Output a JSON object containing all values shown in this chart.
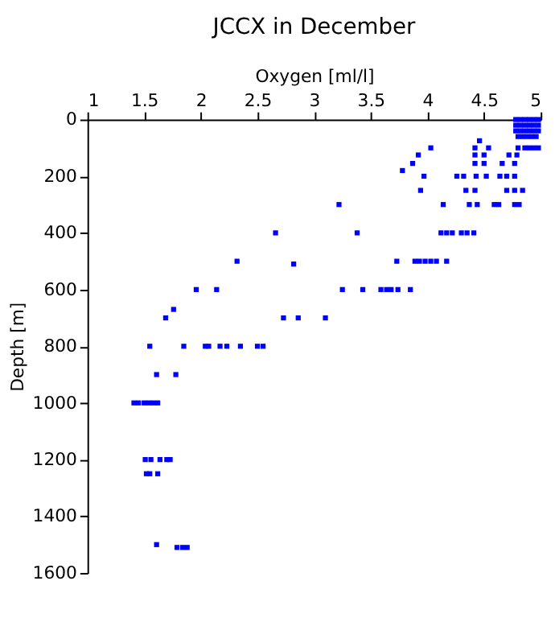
{
  "chart_data": {
    "type": "scatter",
    "title": "JCCX in December",
    "xlabel": "Oxygen [ml/l]",
    "ylabel": "Depth [m]",
    "xlim": [
      1,
      5
    ],
    "xticks": [
      1,
      1.5,
      2,
      2.5,
      3,
      3.5,
      4,
      4.5,
      5
    ],
    "ylim": [
      1600,
      0
    ],
    "yticks": [
      0,
      200,
      400,
      600,
      800,
      1000,
      1200,
      1400,
      1600
    ],
    "marker": "square",
    "series": [
      {
        "color": "#0000ff",
        "x": [
          4.78,
          4.82,
          4.86,
          4.9,
          4.94,
          4.98,
          4.78,
          4.82,
          4.86,
          4.9,
          4.94,
          4.98,
          4.78,
          4.82,
          4.86,
          4.9,
          4.94,
          4.98,
          4.8,
          4.84,
          4.88,
          4.92,
          4.96,
          4.8,
          4.86,
          4.9,
          4.94,
          4.98,
          4.03,
          4.46,
          4.42,
          4.54,
          4.42,
          4.5,
          4.72,
          4.79,
          3.92,
          3.87,
          4.42,
          4.5,
          4.66,
          4.77,
          3.78,
          3.97,
          4.26,
          4.32,
          4.43,
          4.52,
          4.64,
          4.7,
          4.77,
          3.94,
          4.34,
          4.42,
          4.7,
          4.77,
          4.84,
          3.22,
          4.14,
          4.37,
          4.44,
          4.59,
          4.63,
          4.77,
          4.81,
          2.66,
          3.38,
          4.12,
          4.17,
          4.22,
          4.3,
          4.35,
          4.41,
          2.32,
          2.82,
          3.73,
          3.89,
          3.93,
          3.98,
          4.03,
          4.08,
          4.17,
          1.96,
          2.14,
          3.25,
          3.43,
          3.59,
          3.64,
          3.68,
          3.74,
          3.85,
          1.76,
          1.69,
          2.73,
          2.86,
          3.1,
          1.55,
          1.85,
          2.04,
          2.07,
          2.17,
          2.23,
          2.35,
          2.5,
          2.55,
          1.61,
          1.78,
          1.41,
          1.45,
          1.5,
          1.54,
          1.58,
          1.62,
          1.51,
          1.56,
          1.64,
          1.7,
          1.73,
          1.52,
          1.55,
          1.62,
          1.61,
          1.79,
          1.84,
          1.88
        ],
        "values": [
          0,
          0,
          0,
          0,
          0,
          0,
          20,
          20,
          20,
          20,
          20,
          20,
          40,
          40,
          40,
          40,
          40,
          40,
          60,
          60,
          60,
          60,
          60,
          100,
          100,
          100,
          100,
          100,
          100,
          75,
          100,
          100,
          125,
          125,
          125,
          125,
          125,
          155,
          155,
          155,
          155,
          155,
          180,
          200,
          200,
          200,
          200,
          200,
          200,
          200,
          200,
          250,
          250,
          250,
          250,
          250,
          250,
          300,
          300,
          300,
          300,
          300,
          300,
          300,
          300,
          400,
          400,
          400,
          400,
          400,
          400,
          400,
          400,
          500,
          510,
          500,
          500,
          500,
          500,
          500,
          500,
          500,
          600,
          600,
          600,
          600,
          600,
          600,
          600,
          600,
          600,
          670,
          700,
          700,
          700,
          700,
          800,
          800,
          800,
          800,
          800,
          800,
          800,
          800,
          800,
          900,
          900,
          1000,
          1000,
          1000,
          1000,
          1000,
          1000,
          1200,
          1200,
          1200,
          1200,
          1200,
          1250,
          1250,
          1250,
          1500,
          1510,
          1510,
          1510
        ]
      }
    ]
  }
}
